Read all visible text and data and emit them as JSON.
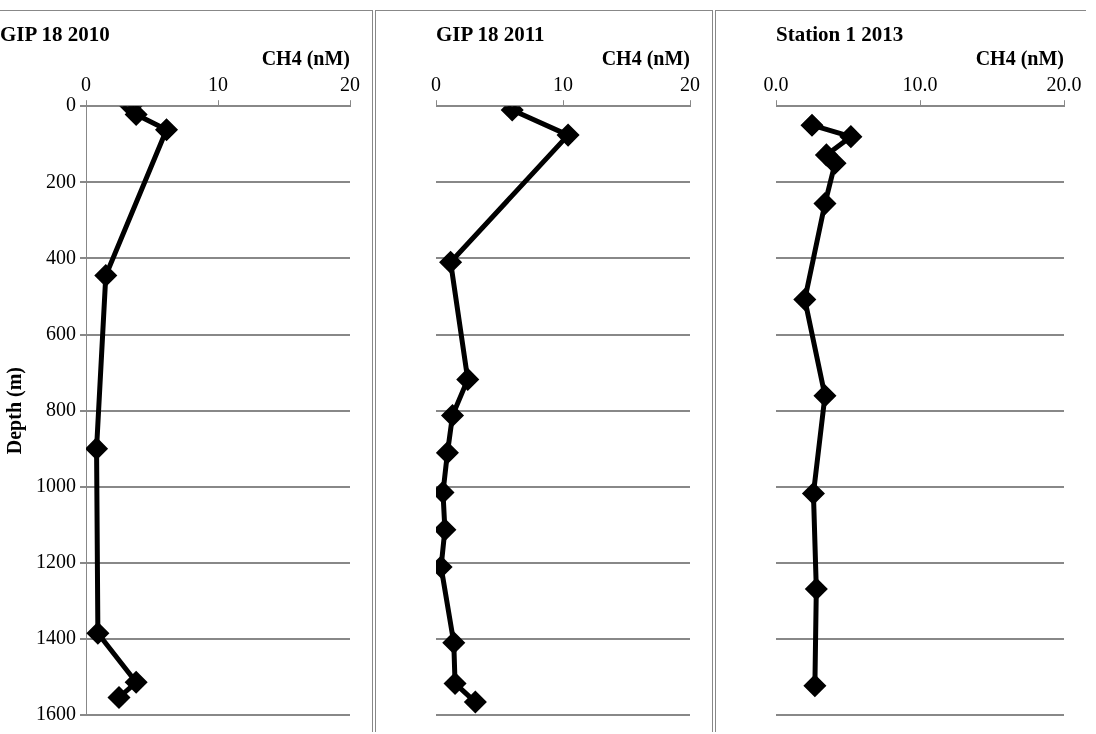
{
  "chart_data": [
    {
      "type": "line",
      "title": "GIP 18 2010",
      "xlabel": "CH4 (nM)",
      "ylabel": "Depth (m)",
      "series": [
        {
          "color": "#000000",
          "x": [
            3.4,
            3.8,
            6.1,
            1.5,
            0.8,
            0.9,
            3.8,
            2.5
          ],
          "values": [
            0,
            22,
            62,
            445,
            900,
            1385,
            1514,
            1554
          ]
        }
      ],
      "xlim": [
        0,
        20
      ],
      "xticks": [
        0,
        10,
        20
      ],
      "ylim": [
        1600,
        0
      ],
      "yticks": [
        0,
        200,
        400,
        600,
        800,
        1000,
        1200,
        1400,
        1600
      ],
      "grid": "y",
      "marker": "diamond",
      "line_style": "solid"
    },
    {
      "type": "line",
      "title": "GIP 18 2011",
      "xlabel": "CH4 (nM)",
      "series": [
        {
          "color": "#000000",
          "x": [
            6.0,
            10.4,
            1.15,
            2.5,
            1.3,
            0.9,
            0.55,
            0.7,
            0.4,
            1.4,
            1.5,
            3.1
          ],
          "values": [
            10,
            76,
            410,
            718,
            813,
            911,
            1015,
            1113,
            1211,
            1410,
            1517,
            1566
          ]
        }
      ],
      "xlim": [
        0,
        20
      ],
      "xticks": [
        0,
        10,
        20
      ],
      "ylim": [
        1600,
        0
      ],
      "yticks": [
        0,
        200,
        400,
        600,
        800,
        1000,
        1200,
        1400,
        1600
      ],
      "grid": "y",
      "marker": "diamond",
      "line_style": "solid",
      "tick_labels": "x"
    },
    {
      "type": "line",
      "title": "Station 1 2013",
      "xlabel": "CH4 (nM)",
      "series": [
        {
          "color": "#000000",
          "x": [
            2.5,
            5.2,
            3.5,
            4.1,
            3.4,
            2.0,
            3.4,
            2.6,
            2.8,
            2.7
          ],
          "values": [
            50,
            80,
            128,
            150,
            256,
            508,
            761,
            1018,
            1269,
            1523
          ]
        }
      ],
      "xlim": [
        0,
        20
      ],
      "xticks": [
        {
          "value": 0,
          "label": "0.0"
        },
        {
          "value": 10,
          "label": "10.0"
        },
        {
          "value": 20,
          "label": "20.0"
        }
      ],
      "ylim": [
        1600,
        0
      ],
      "yticks": [
        0,
        200,
        400,
        600,
        800,
        1000,
        1200,
        1400,
        1600
      ],
      "grid": "y",
      "marker": "diamond",
      "line_style": "solid",
      "tick_labels": "x"
    }
  ]
}
